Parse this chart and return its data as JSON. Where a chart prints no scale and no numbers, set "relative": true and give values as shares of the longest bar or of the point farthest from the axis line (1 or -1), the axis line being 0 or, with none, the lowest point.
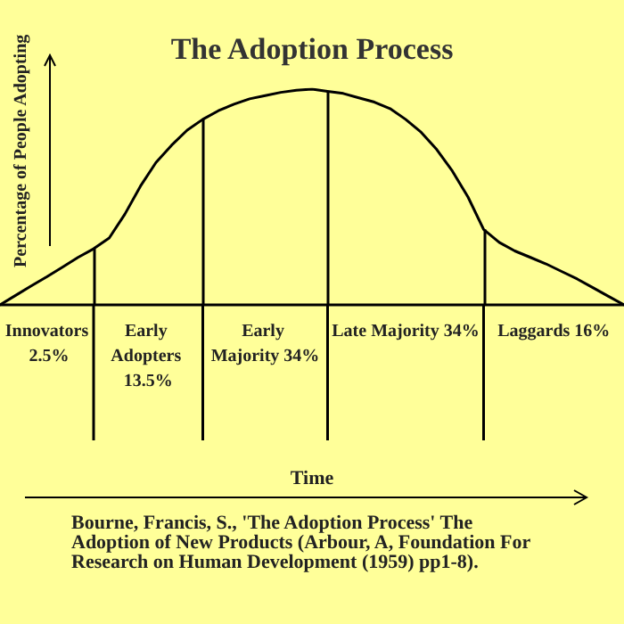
{
  "chart_data": {
    "type": "line",
    "title": "The Adoption Process",
    "ylabel": "Percentage of People Adopting",
    "relative": true,
    "tick_labels": false,
    "grid": false,
    "categories": [
      null,
      null,
      null,
      null,
      null,
      null,
      null,
      null,
      null,
      null,
      null,
      null,
      null,
      null,
      null,
      null,
      null,
      null,
      null,
      null,
      null,
      null,
      null,
      null,
      null,
      null,
      null,
      null,
      null,
      null,
      null,
      null,
      null,
      null,
      null,
      null,
      null,
      null,
      null,
      null,
      null
    ],
    "series": [
      {
        "color": "#000000",
        "values": [
          0,
          0.044,
          0.088,
          0.13,
          0.175,
          0.22,
          0.26,
          0.31,
          0.42,
          0.55,
          0.66,
          0.74,
          0.81,
          0.86,
          0.9,
          0.93,
          0.955,
          0.97,
          0.985,
          0.995,
          1.0,
          0.99,
          0.98,
          0.96,
          0.94,
          0.91,
          0.86,
          0.8,
          0.72,
          0.62,
          0.5,
          0.35,
          0.29,
          0.25,
          0.22,
          0.19,
          0.155,
          0.12,
          0.08,
          0.04,
          0
        ]
      }
    ],
    "annotations": [
      "Innovators 2.5%",
      "Early Adopters 13.5%",
      "Early Majority 34%",
      "Late Majority 34%",
      "Laggards 16%",
      "Time",
      "Bourne, Francis, S., 'The Adoption Process' The Adoption of New Products (Arbour, A, Foundation For Research on Human Development (1959) pp1-8)."
    ]
  }
}
